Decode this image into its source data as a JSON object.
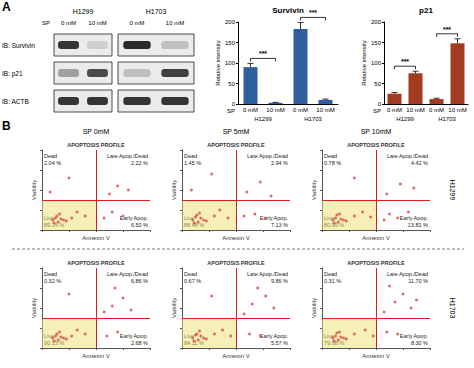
{
  "panel_labels": [
    "A",
    "B"
  ],
  "blot": {
    "cell_lines": [
      "H1299",
      "H1703"
    ],
    "treatment_label": "SP",
    "lanes": [
      "0 mM",
      "10 mM"
    ],
    "rows": [
      {
        "label": "IB: Survivin",
        "bands": [
          [
            0.85,
            0.12
          ],
          [
            0.9,
            0.2
          ]
        ]
      },
      {
        "label": "IB: p21",
        "bands": [
          [
            0.35,
            0.75
          ],
          [
            0.2,
            0.8
          ]
        ]
      },
      {
        "label": "IB: ACTB",
        "bands": [
          [
            0.85,
            0.85
          ],
          [
            0.85,
            0.85
          ]
        ]
      }
    ]
  },
  "apoptosis_columns": [
    "SP 0mM",
    "SP 5mM",
    "SP 10mM"
  ],
  "apoptosis_rows": [
    "H1299",
    "H1703"
  ],
  "chart_data": [
    {
      "type": "bar",
      "title": "Survivin",
      "y_label": "Relative intensity",
      "categories": [
        "0 mM",
        "10 mM",
        "0 mM",
        "10 mM"
      ],
      "groups": [
        "H1299",
        "H1703"
      ],
      "group_axis_label": "SP",
      "values": [
        90,
        3,
        183,
        10
      ],
      "errors": [
        9,
        1,
        16,
        2
      ],
      "color": "#2f5f9e",
      "ylim": [
        0,
        200
      ],
      "yticks": [
        0,
        50,
        100,
        150,
        200
      ],
      "grid": false,
      "significance": [
        "***",
        "***"
      ]
    },
    {
      "type": "bar",
      "title": "p21",
      "y_label": "Relative intensity",
      "categories": [
        "0 mM",
        "10 mM",
        "0 mM",
        "10 mM"
      ],
      "groups": [
        "H1299",
        "H1703"
      ],
      "group_axis_label": "SP",
      "values": [
        25,
        75,
        12,
        148
      ],
      "errors": [
        3,
        5,
        2,
        11
      ],
      "color": "#a23b1f",
      "ylim": [
        0,
        200
      ],
      "yticks": [
        0,
        50,
        100,
        150,
        200
      ],
      "grid": false,
      "significance": [
        "***",
        "***"
      ]
    },
    {
      "type": "scatter",
      "title": "APOPTOSIS PROFILE",
      "x_label": "Annexin V",
      "y_label": "Viability",
      "xlim": [
        0,
        4
      ],
      "xticks": [
        0,
        1,
        2,
        3,
        4
      ],
      "ylim": [
        0,
        4
      ],
      "yticks": [
        0,
        1,
        2,
        3,
        4
      ],
      "tick_labels": false,
      "grid": false,
      "color": "#d9534f",
      "marker": "circle",
      "gates": {
        "x": 2,
        "y": 1.5
      },
      "quadrants": [
        {
          "label": "Dead",
          "percent": "2.04 %"
        },
        {
          "label": "Late Apop./Dead",
          "percent": "2.22 %"
        },
        {
          "label": "Live",
          "percent": "89.24 %"
        },
        {
          "label": "Early Apop.",
          "percent": "6.50 %"
        }
      ],
      "x": [
        0.4,
        0.5,
        0.6,
        0.7,
        0.55,
        0.45,
        0.8,
        0.65,
        0.9,
        1.1,
        1.3,
        1.6,
        2.3,
        2.6,
        3.0,
        2.5,
        2.8,
        0.3,
        1.0,
        3.2
      ],
      "values": [
        0.5,
        0.6,
        0.4,
        0.55,
        0.7,
        0.35,
        0.5,
        0.8,
        0.45,
        0.6,
        0.9,
        0.7,
        0.6,
        0.9,
        0.7,
        1.8,
        2.2,
        1.9,
        2.6,
        2.0
      ]
    },
    {
      "type": "scatter",
      "title": "APOPTOSIS PROFILE",
      "x_label": "Annexin V",
      "y_label": "Viability",
      "xlim": [
        0,
        4
      ],
      "xticks": [
        0,
        1,
        2,
        3,
        4
      ],
      "ylim": [
        0,
        4
      ],
      "yticks": [
        0,
        1,
        2,
        3,
        4
      ],
      "tick_labels": false,
      "grid": false,
      "color": "#d9534f",
      "marker": "circle",
      "gates": {
        "x": 2,
        "y": 1.5
      },
      "quadrants": [
        {
          "label": "Dead",
          "percent": "1.45 %"
        },
        {
          "label": "Late Apop./Dead",
          "percent": "2.94 %"
        },
        {
          "label": "Live",
          "percent": "88.48 %"
        },
        {
          "label": "Early Apop.",
          "percent": "7.13 %"
        }
      ],
      "x": [
        0.4,
        0.5,
        0.6,
        0.7,
        0.55,
        0.45,
        0.8,
        0.65,
        0.9,
        1.2,
        1.4,
        1.7,
        2.3,
        2.7,
        3.1,
        2.4,
        2.9,
        0.35,
        1.1,
        3.3
      ],
      "values": [
        0.5,
        0.65,
        0.4,
        0.6,
        0.75,
        0.35,
        0.5,
        0.85,
        0.45,
        0.7,
        1.0,
        0.6,
        0.7,
        0.8,
        0.6,
        1.9,
        2.4,
        2.0,
        2.8,
        1.7
      ]
    },
    {
      "type": "scatter",
      "title": "APOPTOSIS PROFILE",
      "x_label": "Annexin V",
      "y_label": "Viability",
      "xlim": [
        0,
        4
      ],
      "xticks": [
        0,
        1,
        2,
        3,
        4
      ],
      "ylim": [
        0,
        4
      ],
      "yticks": [
        0,
        1,
        2,
        3,
        4
      ],
      "tick_labels": false,
      "grid": false,
      "color": "#d9534f",
      "marker": "circle",
      "gates": {
        "x": 2,
        "y": 1.5
      },
      "quadrants": [
        {
          "label": "Dead",
          "percent": "0.78 %"
        },
        {
          "label": "Late Apop./Dead",
          "percent": "4.42 %"
        },
        {
          "label": "Live",
          "percent": "80.99 %"
        },
        {
          "label": "Early Apop.",
          "percent": "13.81 %"
        }
      ],
      "x": [
        0.4,
        0.5,
        0.6,
        0.7,
        0.55,
        0.45,
        0.8,
        0.65,
        0.9,
        1.2,
        1.5,
        1.8,
        2.3,
        2.5,
        2.8,
        3.2,
        2.4,
        2.9,
        3.4,
        1.2
      ],
      "values": [
        0.5,
        0.6,
        0.4,
        0.55,
        0.75,
        0.35,
        0.5,
        0.8,
        0.45,
        0.7,
        0.9,
        0.65,
        0.5,
        0.8,
        0.6,
        0.9,
        1.8,
        2.3,
        2.1,
        2.6
      ]
    },
    {
      "type": "scatter",
      "title": "APOPTOSIS PROFILE",
      "x_label": "Annexin V",
      "y_label": "Viability",
      "xlim": [
        0,
        4
      ],
      "xticks": [
        0,
        1,
        2,
        3,
        4
      ],
      "ylim": [
        0,
        4
      ],
      "yticks": [
        0,
        1,
        2,
        3,
        4
      ],
      "tick_labels": false,
      "grid": false,
      "color": "#d9534f",
      "marker": "circle",
      "gates": {
        "x": 2,
        "y": 1.5
      },
      "quadrants": [
        {
          "label": "Dead",
          "percent": "0.32 %"
        },
        {
          "label": "Late Apop./Dead",
          "percent": "6.86 %"
        },
        {
          "label": "Live",
          "percent": "90.13 %"
        },
        {
          "label": "Early Apop.",
          "percent": "2.68 %"
        }
      ],
      "x": [
        0.4,
        0.5,
        0.6,
        0.7,
        0.55,
        0.45,
        0.8,
        0.65,
        0.9,
        1.1,
        1.3,
        1.6,
        2.4,
        2.8,
        2.3,
        2.6,
        3.0,
        3.3,
        1.0,
        2.7
      ],
      "values": [
        0.5,
        0.6,
        0.4,
        0.55,
        0.7,
        0.35,
        0.5,
        0.8,
        0.45,
        0.6,
        0.9,
        0.7,
        0.6,
        0.8,
        1.8,
        2.1,
        2.5,
        1.9,
        2.7,
        3.0
      ]
    },
    {
      "type": "scatter",
      "title": "APOPTOSIS PROFILE",
      "x_label": "Annexin V",
      "y_label": "Viability",
      "xlim": [
        0,
        4
      ],
      "xticks": [
        0,
        1,
        2,
        3,
        4
      ],
      "ylim": [
        0,
        4
      ],
      "yticks": [
        0,
        1,
        2,
        3,
        4
      ],
      "tick_labels": false,
      "grid": false,
      "color": "#d9534f",
      "marker": "circle",
      "gates": {
        "x": 2,
        "y": 1.5
      },
      "quadrants": [
        {
          "label": "Dead",
          "percent": "0.67 %"
        },
        {
          "label": "Late Apop./Dead",
          "percent": "9.86 %"
        },
        {
          "label": "Live",
          "percent": "84.11 %"
        },
        {
          "label": "Early Apop.",
          "percent": "5.57 %"
        }
      ],
      "x": [
        0.4,
        0.5,
        0.6,
        0.7,
        0.55,
        0.45,
        0.8,
        0.65,
        0.9,
        1.2,
        1.5,
        1.8,
        2.5,
        2.9,
        2.3,
        2.6,
        3.1,
        3.4,
        2.8,
        1.1
      ],
      "values": [
        0.5,
        0.65,
        0.4,
        0.6,
        0.7,
        0.35,
        0.5,
        0.85,
        0.45,
        0.7,
        0.9,
        0.6,
        0.7,
        0.6,
        1.7,
        2.2,
        2.6,
        2.0,
        3.0,
        2.6
      ]
    },
    {
      "type": "scatter",
      "title": "APOPTOSIS PROFILE",
      "x_label": "Annexin V",
      "y_label": "Viability",
      "xlim": [
        0,
        4
      ],
      "xticks": [
        0,
        1,
        2,
        3,
        4
      ],
      "ylim": [
        0,
        4
      ],
      "yticks": [
        0,
        1,
        2,
        3,
        4
      ],
      "tick_labels": false,
      "grid": false,
      "color": "#d9534f",
      "marker": "circle",
      "gates": {
        "x": 2,
        "y": 1.5
      },
      "quadrants": [
        {
          "label": "Dead",
          "percent": "0.31 %"
        },
        {
          "label": "Late Apop./Dead",
          "percent": "11.70 %"
        },
        {
          "label": "Live",
          "percent": "79.68 %"
        },
        {
          "label": "Early Apop.",
          "percent": "8.30 %"
        }
      ],
      "x": [
        0.4,
        0.5,
        0.6,
        0.7,
        0.55,
        0.45,
        0.8,
        0.65,
        0.9,
        1.2,
        1.6,
        1.9,
        2.4,
        2.8,
        2.3,
        2.7,
        3.0,
        3.3,
        2.5,
        3.5
      ],
      "values": [
        0.5,
        0.6,
        0.4,
        0.55,
        0.75,
        0.35,
        0.5,
        0.8,
        0.45,
        0.7,
        0.9,
        0.6,
        0.8,
        0.7,
        1.8,
        2.3,
        2.7,
        2.0,
        3.1,
        2.4
      ]
    }
  ]
}
